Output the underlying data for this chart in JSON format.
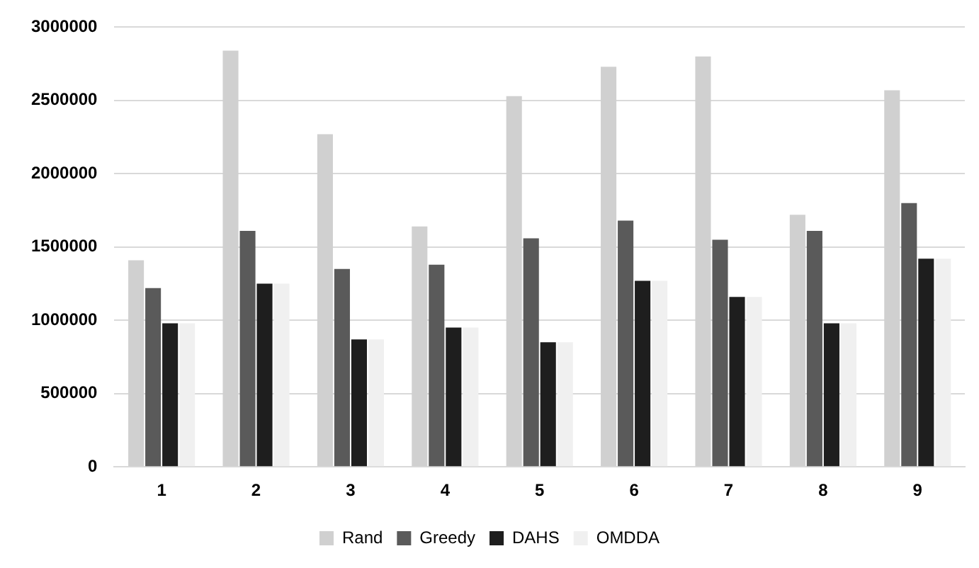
{
  "chart_data": {
    "type": "bar",
    "categories": [
      "1",
      "2",
      "3",
      "4",
      "5",
      "6",
      "7",
      "8",
      "9"
    ],
    "series": [
      {
        "name": "Rand",
        "color": "#d0d0d0",
        "values": [
          1410000,
          2840000,
          2270000,
          1640000,
          2530000,
          2730000,
          2800000,
          1720000,
          2570000
        ]
      },
      {
        "name": "Greedy",
        "color": "#5a5a5a",
        "values": [
          1220000,
          1610000,
          1350000,
          1380000,
          1560000,
          1680000,
          1550000,
          1610000,
          1800000
        ]
      },
      {
        "name": "DAHS",
        "color": "#1e1e1e",
        "values": [
          980000,
          1250000,
          870000,
          950000,
          850000,
          1270000,
          1160000,
          980000,
          1420000
        ]
      },
      {
        "name": "OMDDA",
        "color": "#f0f0f0",
        "values": [
          980000,
          1250000,
          870000,
          950000,
          850000,
          1270000,
          1160000,
          980000,
          1420000
        ]
      }
    ],
    "ylim": [
      0,
      3000000
    ],
    "yticks": [
      0,
      500000,
      1000000,
      1500000,
      2000000,
      2500000,
      3000000
    ],
    "grid": "y",
    "legend": "bottom"
  }
}
